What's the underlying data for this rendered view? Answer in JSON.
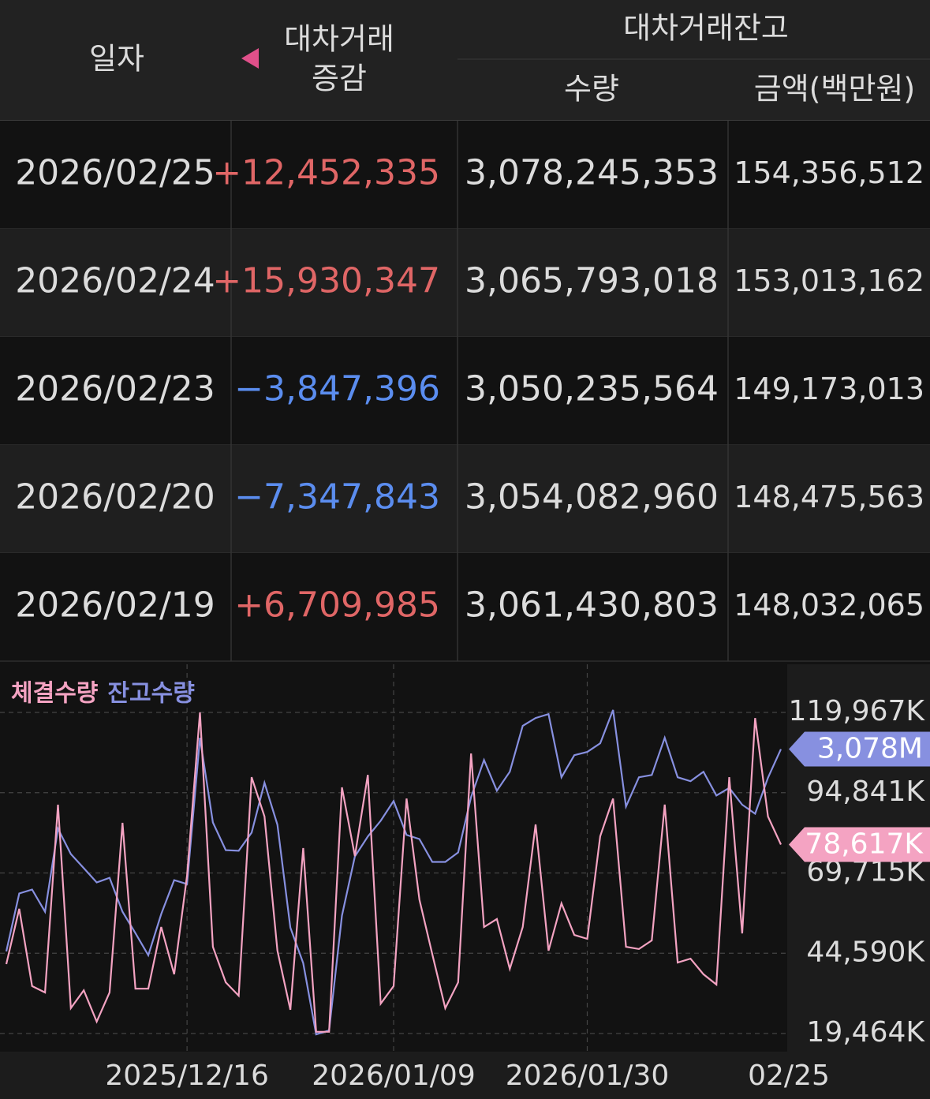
{
  "table": {
    "header": {
      "date": "일자",
      "change": [
        "대차거래",
        "증감"
      ],
      "balance": "대차거래잔고",
      "quantity": "수량",
      "amount": "금액(백만원)"
    },
    "rows": [
      [
        "2026/02/25",
        "+12,452,335",
        "3,078,245,353",
        "154,356,512"
      ],
      [
        "2026/02/24",
        "+15,930,347",
        "3,065,793,018",
        "153,013,162"
      ],
      [
        "2026/02/23",
        "−3,847,396",
        "3,050,235,564",
        "149,173,013"
      ],
      [
        "2026/02/20",
        "−7,347,843",
        "3,054,082,960",
        "148,475,563"
      ],
      [
        "2026/02/19",
        "+6,709,985",
        "3,061,430,803",
        "148,032,065"
      ]
    ]
  },
  "chart_data": {
    "type": "line",
    "categories": [
      null,
      null,
      null,
      null,
      null,
      null,
      null,
      null,
      null,
      null,
      null,
      null,
      null,
      null,
      "2025/12/16",
      null,
      null,
      null,
      null,
      null,
      null,
      null,
      null,
      null,
      null,
      null,
      null,
      null,
      null,
      null,
      "2026/01/09",
      null,
      null,
      null,
      null,
      null,
      null,
      null,
      null,
      null,
      null,
      null,
      null,
      null,
      null,
      "2026/01/30",
      null,
      null,
      null,
      null,
      null,
      null,
      null,
      null,
      null,
      null,
      null,
      null,
      null,
      null,
      "02/25"
    ],
    "series": [
      {
        "name": "체결수량",
        "color": "#f4a3c2",
        "last_label": "78,617K",
        "values": [
          41200,
          58500,
          34300,
          32300,
          91100,
          27400,
          33000,
          23200,
          32300,
          85400,
          33500,
          33500,
          52800,
          38000,
          68800,
          120000,
          46600,
          35500,
          31300,
          99700,
          87400,
          45400,
          26900,
          77500,
          20000,
          20000,
          96500,
          75000,
          100400,
          28800,
          34300,
          93000,
          61400,
          44200,
          27400,
          35500,
          107100,
          52800,
          55300,
          39700,
          52800,
          84900,
          45400,
          60200,
          50300,
          49100,
          81200,
          93000,
          46600,
          45900,
          48600,
          91100,
          41700,
          42900,
          38000,
          34800,
          99700,
          50800,
          118200,
          87400,
          78617
        ]
      },
      {
        "name": "잔고수량",
        "color": "#8790e0",
        "axis": "y2",
        "last_label": "3,078M",
        "values": [
          2990.5,
          3015.6,
          3017.3,
          3007.7,
          3043.7,
          3032.7,
          3026.6,
          3020.4,
          3022.4,
          3007.7,
          2998.4,
          2988.8,
          3006.7,
          3021.4,
          3019.7,
          3083.1,
          3046.4,
          3034.4,
          3034.1,
          3042.0,
          3063.6,
          3045.4,
          3000.8,
          2985.4,
          2954.5,
          2956.2,
          3006.0,
          3031.7,
          3040.3,
          3047.1,
          3055.7,
          3041.0,
          3039.2,
          3029.3,
          3029.3,
          3033.4,
          3057.4,
          3073.5,
          3060.2,
          3068.4,
          3088.3,
          3091.7,
          3093.4,
          3066.0,
          3075.6,
          3077.0,
          3080.7,
          3095.2,
          3053.3,
          3066.0,
          3067.0,
          3083.1,
          3066.0,
          3064.3,
          3068.4,
          3058.1,
          3061.4,
          3054.1,
          3050.2,
          3065.8,
          3078.2
        ]
      }
    ],
    "ylim": [
      13785,
      135030
    ],
    "yticks": [
      {
        "value": 119967,
        "label": "119,967K"
      },
      {
        "value": 94841,
        "label": "94,841K"
      },
      {
        "value": 69715,
        "label": "69,715K"
      },
      {
        "value": 44590,
        "label": "44,590K"
      },
      {
        "value": 19464,
        "label": "19,464K"
      }
    ],
    "y2lim": [
      2947,
      3115
    ],
    "grid": true
  }
}
